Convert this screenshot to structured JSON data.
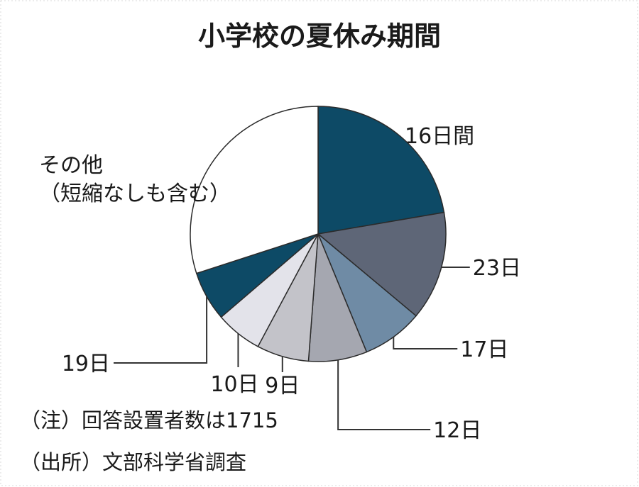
{
  "chart_data": {
    "type": "pie",
    "title": "小学校の夏休み期間",
    "categories": [
      "16日間",
      "23日",
      "17日",
      "12日",
      "9日",
      "10日",
      "19日",
      "その他\n（短縮なしも含む）"
    ],
    "values": [
      22.3,
      13.8,
      7.7,
      7.4,
      6.6,
      5.9,
      6.3,
      30.0
    ],
    "unit": "%",
    "colors": [
      "#0d4a66",
      "#5e6677",
      "#6f8ba5",
      "#a5a7b0",
      "#c3c3c9",
      "#e3e3ea",
      "#0d4a66",
      "#ffffff"
    ],
    "legend": "none"
  },
  "notes": [
    "（注）回答設置者数は1715",
    "（出所）文部科学省調査"
  ]
}
